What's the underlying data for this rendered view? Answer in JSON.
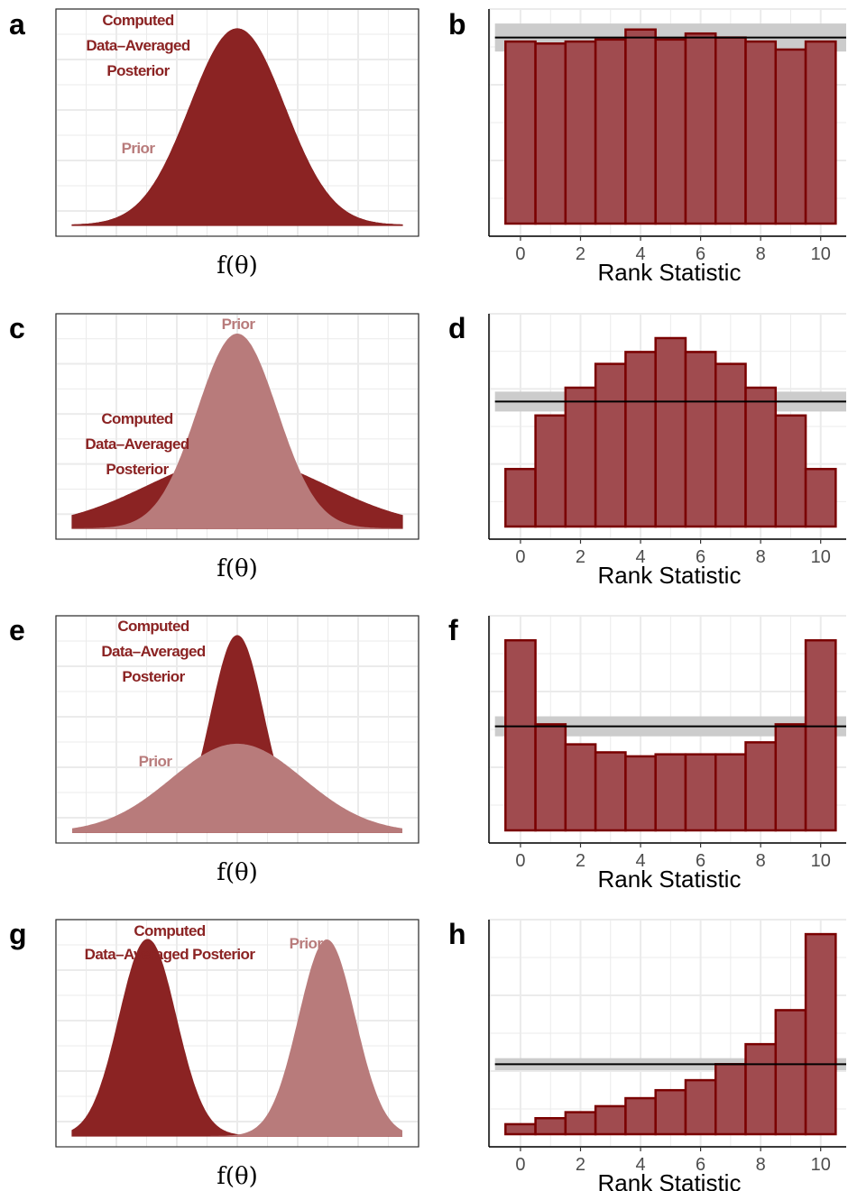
{
  "colors": {
    "posterior": "#8b2323",
    "prior": "#b87b7b",
    "bar_fill": "#a04b4f",
    "bar_stroke": "#7a0000",
    "band": "#cccccc",
    "grid": "#ebebeb",
    "reference_line": "#000000"
  },
  "chart_data": [
    {
      "panel": "a",
      "type": "area",
      "xlabel": "f(θ)",
      "annotations": {
        "posterior": [
          "Computed",
          "Data–Averaged",
          "Posterior"
        ],
        "prior": [
          "Prior"
        ]
      },
      "series": [
        {
          "name": "Prior",
          "mean": 0,
          "sd": 1,
          "peak": 1.0
        },
        {
          "name": "Computed Data–Averaged Posterior",
          "mean": 0,
          "sd": 1,
          "peak": 1.0
        }
      ]
    },
    {
      "panel": "b",
      "type": "bar",
      "xlabel": "Rank Statistic",
      "x": [
        0,
        1,
        2,
        3,
        4,
        5,
        6,
        7,
        8,
        9,
        10
      ],
      "values": [
        0.91,
        0.9,
        0.91,
        0.92,
        0.97,
        0.92,
        0.95,
        0.93,
        0.91,
        0.87,
        0.91
      ],
      "reference": 0.93,
      "band": [
        0.86,
        1.0
      ],
      "ylim": [
        0,
        1.05
      ],
      "xticks": [
        0,
        2,
        4,
        6,
        8,
        10
      ]
    },
    {
      "panel": "c",
      "type": "area",
      "xlabel": "f(θ)",
      "annotations": {
        "posterior": [
          "Computed",
          "Data–Averaged",
          "Posterior"
        ],
        "prior": [
          "Prior"
        ]
      },
      "series": [
        {
          "name": "Computed Data–Averaged Posterior",
          "mean": 0,
          "sd": 1.9,
          "peak": 0.36
        },
        {
          "name": "Prior",
          "mean": 0,
          "sd": 0.85,
          "peak": 1.0
        }
      ]
    },
    {
      "panel": "d",
      "type": "bar",
      "xlabel": "Rank Statistic",
      "x": [
        0,
        1,
        2,
        3,
        4,
        5,
        6,
        7,
        8,
        9,
        10
      ],
      "values": [
        0.29,
        0.56,
        0.7,
        0.82,
        0.88,
        0.95,
        0.88,
        0.82,
        0.7,
        0.56,
        0.29
      ],
      "reference": 0.63,
      "band": [
        0.58,
        0.68
      ],
      "ylim": [
        0,
        1.05
      ],
      "xticks": [
        0,
        2,
        4,
        6,
        8,
        10
      ]
    },
    {
      "panel": "e",
      "type": "area",
      "xlabel": "f(θ)",
      "annotations": {
        "posterior": [
          "Computed",
          "Data–Averaged",
          "Posterior"
        ],
        "prior": [
          "Prior"
        ]
      },
      "series": [
        {
          "name": "Computed Data–Averaged Posterior",
          "mean": 0,
          "sd": 0.55,
          "peak": 1.0
        },
        {
          "name": "Prior",
          "mean": 0,
          "sd": 1.4,
          "peak": 0.45
        }
      ]
    },
    {
      "panel": "f",
      "type": "bar",
      "xlabel": "Rank Statistic",
      "x": [
        0,
        1,
        2,
        3,
        4,
        5,
        6,
        7,
        8,
        9,
        10
      ],
      "values": [
        0.95,
        0.53,
        0.43,
        0.39,
        0.37,
        0.38,
        0.38,
        0.38,
        0.44,
        0.53,
        0.95
      ],
      "reference": 0.52,
      "band": [
        0.47,
        0.57
      ],
      "ylim": [
        0,
        1.05
      ],
      "xticks": [
        0,
        2,
        4,
        6,
        8,
        10
      ]
    },
    {
      "panel": "g",
      "type": "area",
      "xlabel": "f(θ)",
      "annotations": {
        "posterior": [
          "Computed",
          "Data–Averaged Posterior"
        ],
        "prior": [
          "Prior"
        ]
      },
      "series": [
        {
          "name": "Computed Data–Averaged Posterior",
          "mean": -1.9,
          "sd": 0.6,
          "peak": 1.0
        },
        {
          "name": "Prior",
          "mean": 1.9,
          "sd": 0.6,
          "peak": 1.0
        }
      ]
    },
    {
      "panel": "h",
      "type": "bar",
      "xlabel": "Rank Statistic",
      "x": [
        0,
        1,
        2,
        3,
        4,
        5,
        6,
        7,
        8,
        9,
        10
      ],
      "values": [
        0.05,
        0.08,
        0.11,
        0.14,
        0.18,
        0.22,
        0.27,
        0.35,
        0.45,
        0.62,
        1.0
      ],
      "reference": 0.35,
      "band": [
        0.32,
        0.38
      ],
      "ylim": [
        0,
        1.05
      ],
      "xticks": [
        0,
        2,
        4,
        6,
        8,
        10
      ]
    }
  ]
}
